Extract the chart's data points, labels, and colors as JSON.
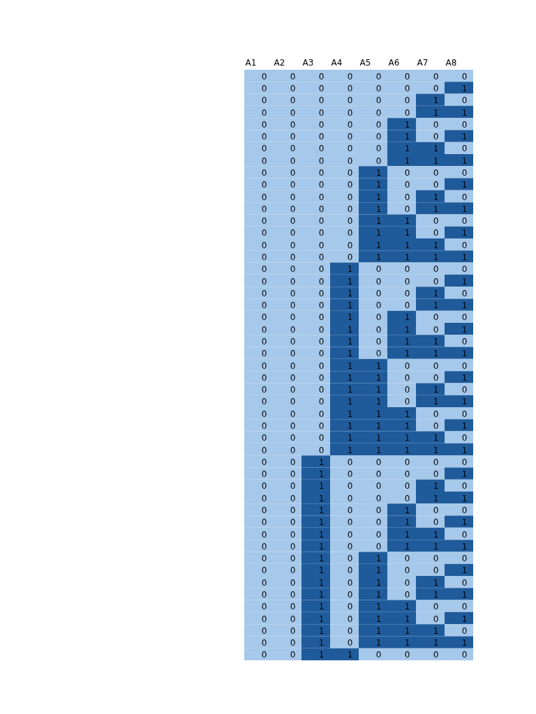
{
  "chart_data": {
    "type": "heatmap",
    "categories": [
      "A1",
      "A2",
      "A3",
      "A4",
      "A5",
      "A6",
      "A7",
      "A8"
    ],
    "y_categories": [
      null,
      null,
      null,
      null,
      null,
      null,
      null,
      null,
      null,
      null,
      null,
      null,
      null,
      null,
      null,
      null,
      null,
      null,
      null,
      null,
      null,
      null,
      null,
      null,
      null,
      null,
      null,
      null,
      null,
      null,
      null,
      null,
      null,
      null,
      null,
      null,
      null,
      null,
      null,
      null,
      null,
      null,
      null,
      null,
      null,
      null,
      null,
      null,
      null
    ],
    "colors": [
      "#a6c8ea",
      "#1f5b9b"
    ],
    "cells": [
      [
        0,
        0,
        0,
        0,
        0,
        0,
        0,
        0
      ],
      [
        0,
        0,
        0,
        0,
        0,
        0,
        0,
        1
      ],
      [
        0,
        0,
        0,
        0,
        0,
        0,
        1,
        0
      ],
      [
        0,
        0,
        0,
        0,
        0,
        0,
        1,
        1
      ],
      [
        0,
        0,
        0,
        0,
        0,
        1,
        0,
        0
      ],
      [
        0,
        0,
        0,
        0,
        0,
        1,
        0,
        1
      ],
      [
        0,
        0,
        0,
        0,
        0,
        1,
        1,
        0
      ],
      [
        0,
        0,
        0,
        0,
        0,
        1,
        1,
        1
      ],
      [
        0,
        0,
        0,
        0,
        1,
        0,
        0,
        0
      ],
      [
        0,
        0,
        0,
        0,
        1,
        0,
        0,
        1
      ],
      [
        0,
        0,
        0,
        0,
        1,
        0,
        1,
        0
      ],
      [
        0,
        0,
        0,
        0,
        1,
        0,
        1,
        1
      ],
      [
        0,
        0,
        0,
        0,
        1,
        1,
        0,
        0
      ],
      [
        0,
        0,
        0,
        0,
        1,
        1,
        0,
        1
      ],
      [
        0,
        0,
        0,
        0,
        1,
        1,
        1,
        0
      ],
      [
        0,
        0,
        0,
        0,
        1,
        1,
        1,
        1
      ],
      [
        0,
        0,
        0,
        1,
        0,
        0,
        0,
        0
      ],
      [
        0,
        0,
        0,
        1,
        0,
        0,
        0,
        1
      ],
      [
        0,
        0,
        0,
        1,
        0,
        0,
        1,
        0
      ],
      [
        0,
        0,
        0,
        1,
        0,
        0,
        1,
        1
      ],
      [
        0,
        0,
        0,
        1,
        0,
        1,
        0,
        0
      ],
      [
        0,
        0,
        0,
        1,
        0,
        1,
        0,
        1
      ],
      [
        0,
        0,
        0,
        1,
        0,
        1,
        1,
        0
      ],
      [
        0,
        0,
        0,
        1,
        0,
        1,
        1,
        1
      ],
      [
        0,
        0,
        0,
        1,
        1,
        0,
        0,
        0
      ],
      [
        0,
        0,
        0,
        1,
        1,
        0,
        0,
        1
      ],
      [
        0,
        0,
        0,
        1,
        1,
        0,
        1,
        0
      ],
      [
        0,
        0,
        0,
        1,
        1,
        0,
        1,
        1
      ],
      [
        0,
        0,
        0,
        1,
        1,
        1,
        0,
        0
      ],
      [
        0,
        0,
        0,
        1,
        1,
        1,
        0,
        1
      ],
      [
        0,
        0,
        0,
        1,
        1,
        1,
        1,
        0
      ],
      [
        0,
        0,
        0,
        1,
        1,
        1,
        1,
        1
      ],
      [
        0,
        0,
        1,
        0,
        0,
        0,
        0,
        0
      ],
      [
        0,
        0,
        1,
        0,
        0,
        0,
        0,
        1
      ],
      [
        0,
        0,
        1,
        0,
        0,
        0,
        1,
        0
      ],
      [
        0,
        0,
        1,
        0,
        0,
        0,
        1,
        1
      ],
      [
        0,
        0,
        1,
        0,
        0,
        1,
        0,
        0
      ],
      [
        0,
        0,
        1,
        0,
        0,
        1,
        0,
        1
      ],
      [
        0,
        0,
        1,
        0,
        0,
        1,
        1,
        0
      ],
      [
        0,
        0,
        1,
        0,
        0,
        1,
        1,
        1
      ],
      [
        0,
        0,
        1,
        0,
        1,
        0,
        0,
        0
      ],
      [
        0,
        0,
        1,
        0,
        1,
        0,
        0,
        1
      ],
      [
        0,
        0,
        1,
        0,
        1,
        0,
        1,
        0
      ],
      [
        0,
        0,
        1,
        0,
        1,
        0,
        1,
        1
      ],
      [
        0,
        0,
        1,
        0,
        1,
        1,
        0,
        0
      ],
      [
        0,
        0,
        1,
        0,
        1,
        1,
        0,
        1
      ],
      [
        0,
        0,
        1,
        0,
        1,
        1,
        1,
        0
      ],
      [
        0,
        0,
        1,
        0,
        1,
        1,
        1,
        1
      ],
      [
        0,
        0,
        1,
        1,
        0,
        0,
        0,
        0
      ]
    ],
    "data_labels": true
  }
}
